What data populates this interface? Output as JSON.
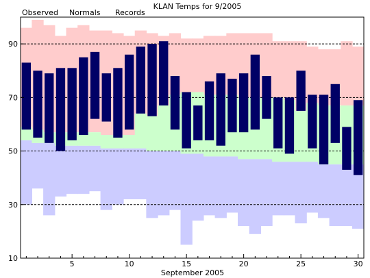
{
  "chart_data": {
    "type": "bar",
    "title": "KLAN Temps for 9/2005",
    "xlabel": "September 2005",
    "ylabel": "",
    "xlim": [
      0.5,
      30.5
    ],
    "ylim": [
      10,
      100
    ],
    "yticks": [
      10,
      30,
      50,
      70,
      90
    ],
    "xticks": [
      5,
      10,
      15,
      20,
      25,
      30
    ],
    "grid_y": [
      30,
      50,
      70,
      90
    ],
    "legend": [
      "Observed",
      "Normals",
      "Records"
    ],
    "days": [
      1,
      2,
      3,
      4,
      5,
      6,
      7,
      8,
      9,
      10,
      11,
      12,
      13,
      14,
      15,
      16,
      17,
      18,
      19,
      20,
      21,
      22,
      23,
      24,
      25,
      26,
      27,
      28,
      29,
      30
    ],
    "records_high": [
      96,
      99,
      97,
      93,
      96,
      97,
      95,
      95,
      94,
      93,
      95,
      94,
      93,
      94,
      92,
      92,
      93,
      93,
      94,
      94,
      94,
      94,
      91,
      91,
      91,
      89,
      88,
      88,
      91,
      89
    ],
    "records_low": [
      30,
      36,
      26,
      33,
      34,
      34,
      35,
      28,
      30,
      32,
      32,
      25,
      26,
      28,
      15,
      24,
      26,
      25,
      27,
      22,
      19,
      22,
      26,
      26,
      23,
      27,
      25,
      22,
      22,
      21
    ],
    "normals_high": [
      59,
      58,
      57,
      57,
      57,
      57,
      57,
      56,
      56,
      56,
      64,
      63,
      67,
      71,
      72,
      72,
      71,
      71,
      71,
      70,
      70,
      70,
      70,
      69,
      65,
      68,
      67,
      67,
      67,
      67
    ],
    "normals_low": [
      54,
      53,
      53,
      52,
      52,
      52,
      52,
      51,
      51,
      51,
      51,
      50,
      50,
      50,
      49,
      49,
      48,
      48,
      48,
      47,
      47,
      47,
      46,
      46,
      46,
      46,
      45,
      45,
      45,
      45
    ],
    "observed_high": [
      83,
      80,
      79,
      81,
      81,
      85,
      87,
      79,
      81,
      86,
      89,
      90,
      91,
      78,
      72,
      67,
      76,
      79,
      77,
      79,
      86,
      78,
      70,
      70,
      80,
      71,
      71,
      75,
      59,
      69
    ],
    "observed_low": [
      58,
      55,
      53,
      50,
      54,
      56,
      62,
      61,
      55,
      58,
      64,
      63,
      67,
      58,
      51,
      54,
      54,
      52,
      57,
      57,
      58,
      62,
      51,
      49,
      65,
      51,
      45,
      53,
      43,
      41
    ],
    "colors": {
      "observed": "#000066",
      "normals": "#ccffcc",
      "records_high": "#ffcccc",
      "records_low": "#ccccff",
      "legend_observed": "#000066",
      "legend_normals": "#006600",
      "legend_records": "#cc6699"
    }
  }
}
